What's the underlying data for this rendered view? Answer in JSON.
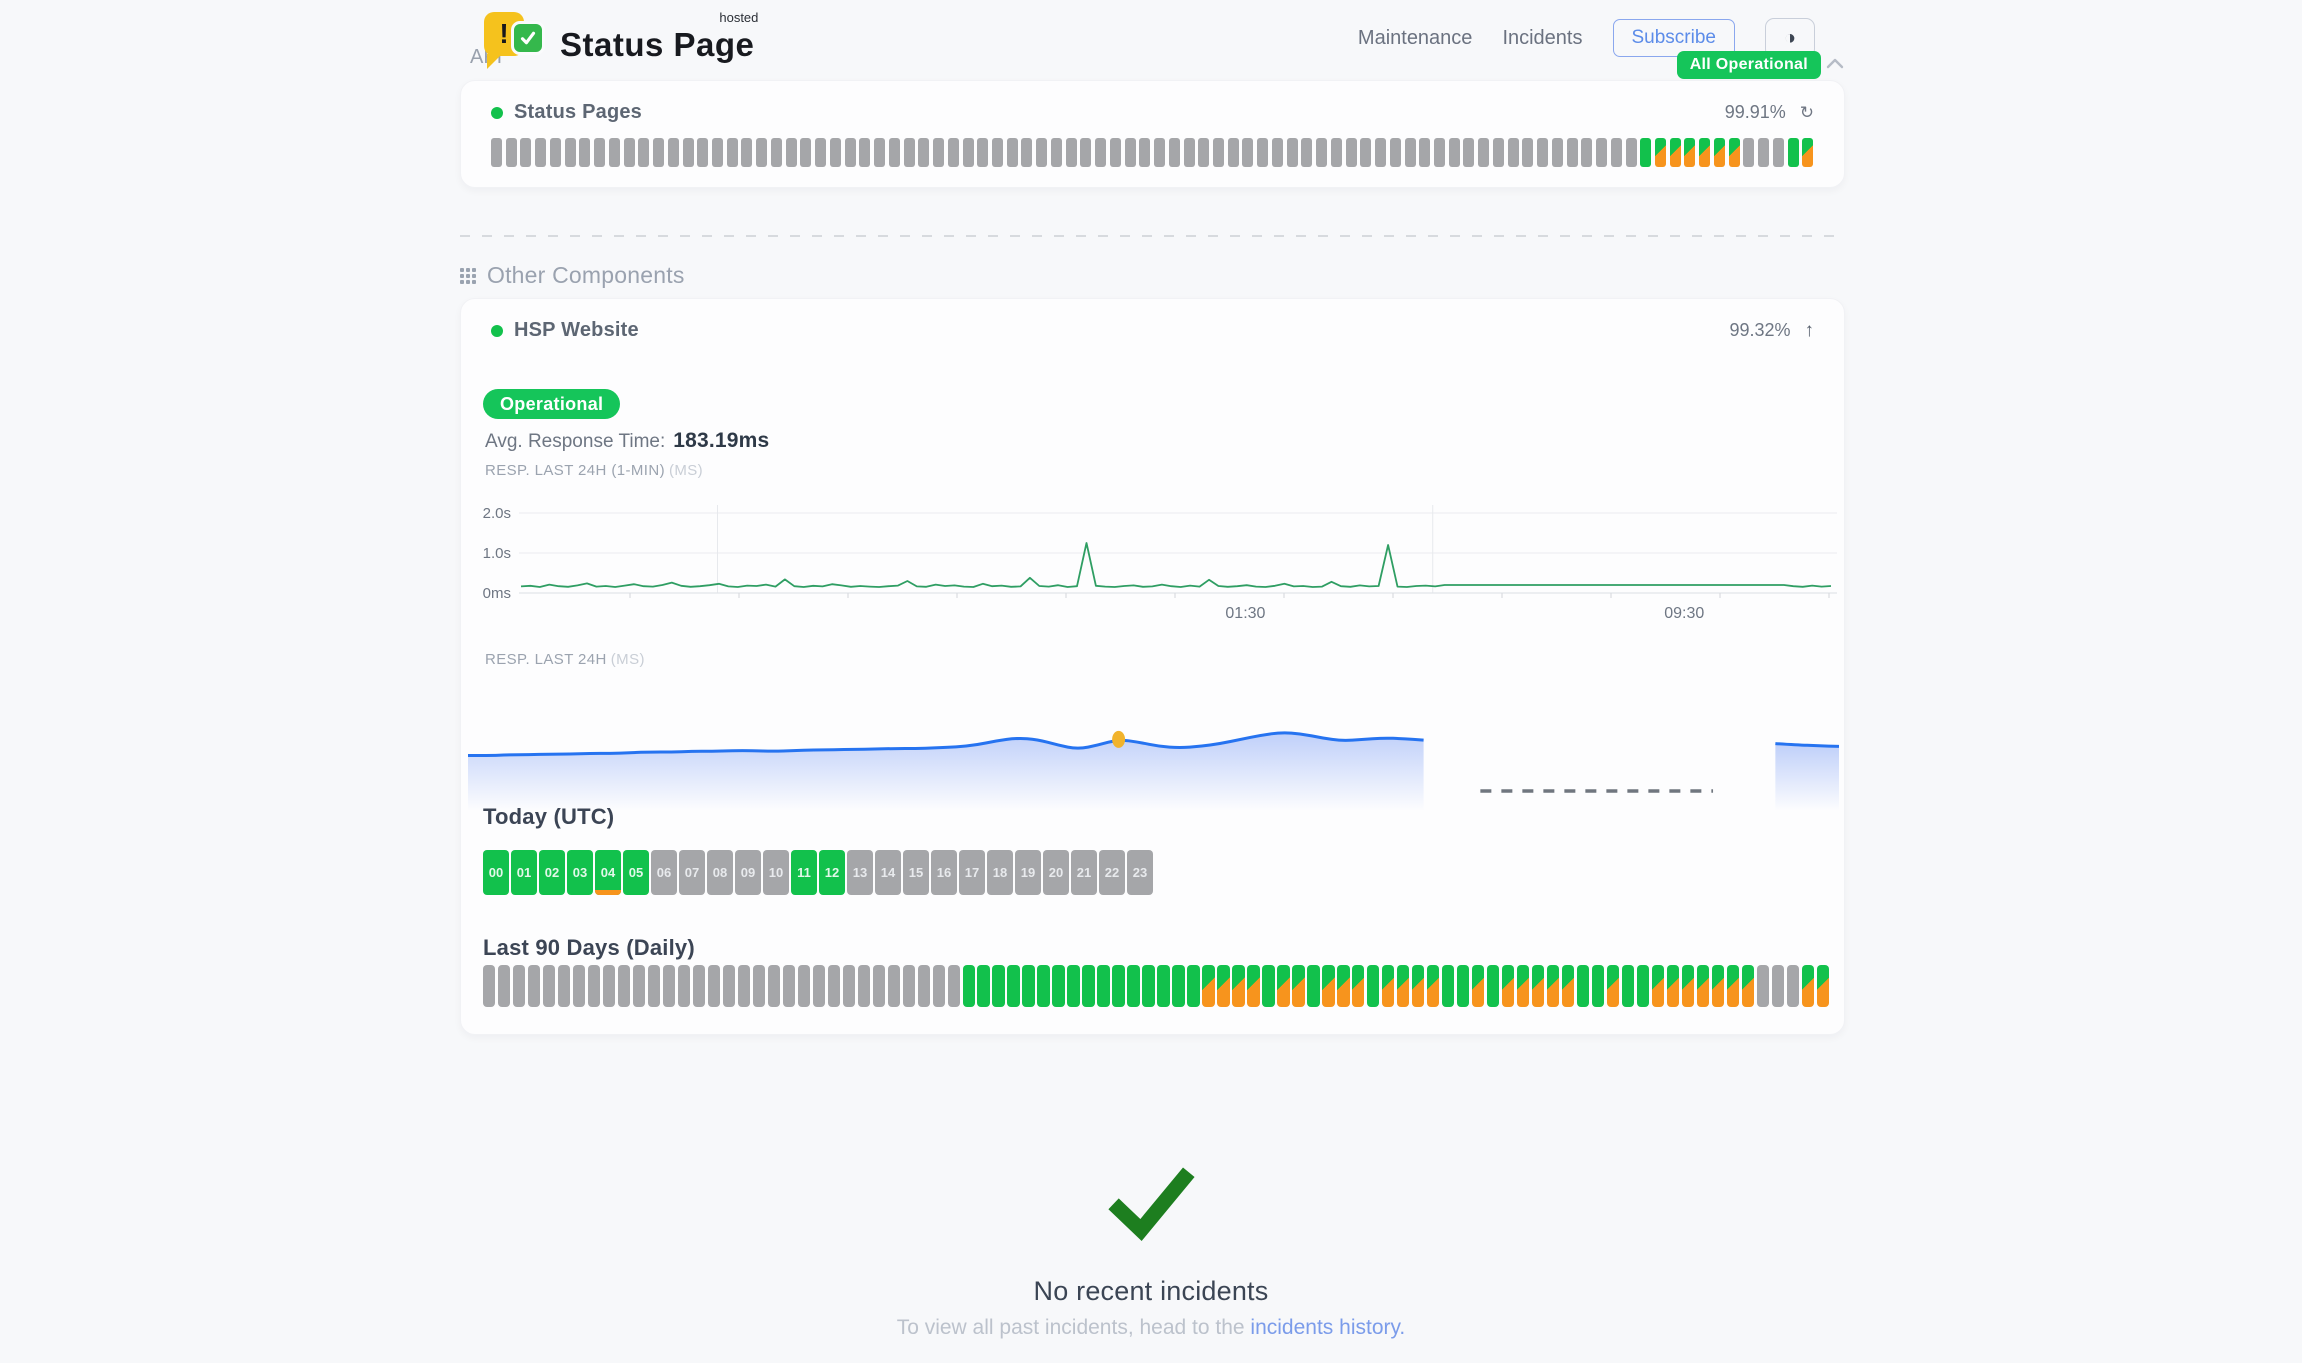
{
  "header": {
    "brand": {
      "name": "Status Page",
      "superscript": "hosted",
      "icon_exclamation": "!"
    },
    "nav": [
      {
        "id": "maintenance",
        "label": "Maintenance"
      },
      {
        "id": "incidents",
        "label": "Incidents"
      }
    ],
    "subscribe_label": "Subscribe",
    "theme_toggle_icon": "◑",
    "overall_status": "All Operational"
  },
  "sections": {
    "api": {
      "title": "API",
      "component": {
        "name": "Status Pages",
        "uptime_percent": "99.91%",
        "refresh_icon": "↻",
        "bars": "eeeeeeeeeeeeeeeeeeeeeeeeeeeeeeeeeeeeeeeeeeeeeeeeeeeeeeeeeeeeeeeeeeeeeeeeeeeeeeuddddddeeeud"
      }
    },
    "other": {
      "title": "Other Components",
      "component": {
        "name": "HSP Website",
        "uptime_percent": "99.32%",
        "collapse_icon": "↑",
        "status_badge": "Operational",
        "avg_response_label": "Avg. Response Time:",
        "avg_response_value": "183.19ms",
        "today": {
          "title": "Today (UTC)",
          "hours": [
            {
              "label": "00",
              "status": "up"
            },
            {
              "label": "01",
              "status": "up"
            },
            {
              "label": "02",
              "status": "up"
            },
            {
              "label": "03",
              "status": "up"
            },
            {
              "label": "04",
              "status": "up",
              "strip": true
            },
            {
              "label": "05",
              "status": "up"
            },
            {
              "label": "06",
              "status": "empty"
            },
            {
              "label": "07",
              "status": "empty"
            },
            {
              "label": "08",
              "status": "empty"
            },
            {
              "label": "09",
              "status": "empty"
            },
            {
              "label": "10",
              "status": "empty"
            },
            {
              "label": "11",
              "status": "up"
            },
            {
              "label": "12",
              "status": "up"
            },
            {
              "label": "13",
              "status": "empty"
            },
            {
              "label": "14",
              "status": "empty"
            },
            {
              "label": "15",
              "status": "empty"
            },
            {
              "label": "16",
              "status": "empty"
            },
            {
              "label": "17",
              "status": "empty"
            },
            {
              "label": "18",
              "status": "empty"
            },
            {
              "label": "19",
              "status": "empty"
            },
            {
              "label": "20",
              "status": "empty"
            },
            {
              "label": "21",
              "status": "empty"
            },
            {
              "label": "22",
              "status": "empty"
            },
            {
              "label": "23",
              "status": "empty"
            }
          ]
        },
        "last90": {
          "title": "Last 90 Days (Daily)",
          "bars": "eeeeeeeeeeeeeeeeeeeeeeeeeeeeeeeeuuuuuuuuuuuuuuuudddduddudddudddduududdddduuduudddddddeeedd"
        }
      }
    }
  },
  "chart_data": [
    {
      "id": "resp-last-24h-1min",
      "type": "line",
      "title": "RESP. LAST 24H (1-MIN)",
      "unit": "(MS)",
      "ymax_ms": 2000,
      "yticks": [
        {
          "label": "2.0s",
          "ms": 2000
        },
        {
          "label": "1.0s",
          "ms": 1000
        },
        {
          "label": "0ms",
          "ms": 0
        }
      ],
      "xticks": [
        {
          "label": "01:30",
          "pos": 0.553
        },
        {
          "label": "09:30",
          "pos": 0.888
        }
      ],
      "vgrid": [
        0.15,
        0.696
      ],
      "values_ms": [
        165,
        180,
        150,
        210,
        170,
        155,
        190,
        240,
        160,
        175,
        150,
        185,
        220,
        170,
        160,
        200,
        260,
        180,
        155,
        170,
        195,
        230,
        165,
        150,
        185,
        175,
        210,
        160,
        340,
        170,
        150,
        180,
        165,
        220,
        190,
        155,
        175,
        160,
        150,
        170,
        185,
        300,
        165,
        155,
        210,
        175,
        190,
        160,
        150,
        230,
        170,
        185,
        155,
        165,
        380,
        175,
        160,
        195,
        150,
        170,
        1250,
        180,
        160,
        150,
        175,
        190,
        155,
        165,
        210,
        170,
        150,
        185,
        160,
        330,
        175,
        155,
        170,
        195,
        160,
        150,
        180,
        230,
        165,
        175,
        150,
        160,
        280,
        170,
        155,
        190,
        165,
        175,
        1200,
        160,
        150,
        175,
        185,
        165,
        200,
        200,
        200,
        200,
        200,
        200,
        200,
        200,
        200,
        200,
        200,
        200,
        200,
        200,
        200,
        200,
        200,
        200,
        200,
        200,
        200,
        200,
        200,
        200,
        200,
        200,
        200,
        200,
        200,
        200,
        200,
        200,
        200,
        200,
        200,
        200,
        200,
        170,
        155,
        185,
        160,
        175
      ]
    },
    {
      "id": "resp-last-24h",
      "type": "area",
      "title": "RESP. LAST 24H",
      "unit": "(MS)",
      "segment_end": 0.695,
      "points": [
        0.55,
        0.55,
        0.56,
        0.56,
        0.57,
        0.57,
        0.58,
        0.58,
        0.59,
        0.6,
        0.6,
        0.61,
        0.61,
        0.62,
        0.62,
        0.61,
        0.62,
        0.63,
        0.63,
        0.64,
        0.64,
        0.65,
        0.65,
        0.66,
        0.67,
        0.7,
        0.76,
        0.8,
        0.78,
        0.7,
        0.64,
        0.7,
        0.78,
        0.74,
        0.68,
        0.66,
        0.68,
        0.72,
        0.78,
        0.84,
        0.88,
        0.86,
        0.8,
        0.76,
        0.78,
        0.8,
        0.79,
        0.77
      ],
      "marker_index": 32,
      "gap_dash": {
        "from": 0.736,
        "to": 0.904
      },
      "tail_start": 0.949,
      "tail_points": [
        0.72,
        0.7,
        0.69,
        0.68
      ]
    }
  ],
  "incidents": {
    "title": "No recent incidents",
    "subtitle_prefix": "To view all past incidents, head to the ",
    "link_text": "incidents history."
  },
  "colors": {
    "green": "#15c55a",
    "bar_green": "#12c14c",
    "orange": "#f7941d",
    "bar_gray": "#a5a6a9",
    "chart_green": "#2f9e63",
    "blue_line": "#2673f0",
    "marker_yellow": "#f1b32c",
    "link_blue": "#7b9cea",
    "subscribe_blue": "#5c8ce9",
    "check_green": "#1d7e1f",
    "text_dark": "#2e3947",
    "text_slate": "#5d6673",
    "text_gray": "#6e7683",
    "text_muted": "#9aa2af",
    "page_bg": "#f7f8fa",
    "card_bg": "#fdfdfe"
  }
}
